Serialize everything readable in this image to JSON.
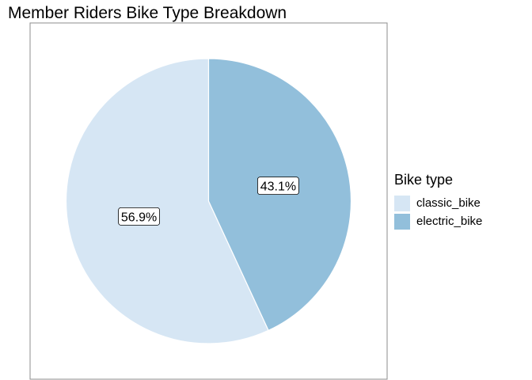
{
  "chart_data": {
    "type": "pie",
    "title": "Member Riders Bike Type Breakdown",
    "legend_title": "Bike type",
    "legend_position": "right",
    "slices": [
      {
        "label": "classic_bike",
        "value": 56.9,
        "display": "56.9%",
        "color": "#d6e6f4"
      },
      {
        "label": "electric_bike",
        "value": 43.1,
        "display": "43.1%",
        "color": "#92bfdb"
      }
    ]
  }
}
